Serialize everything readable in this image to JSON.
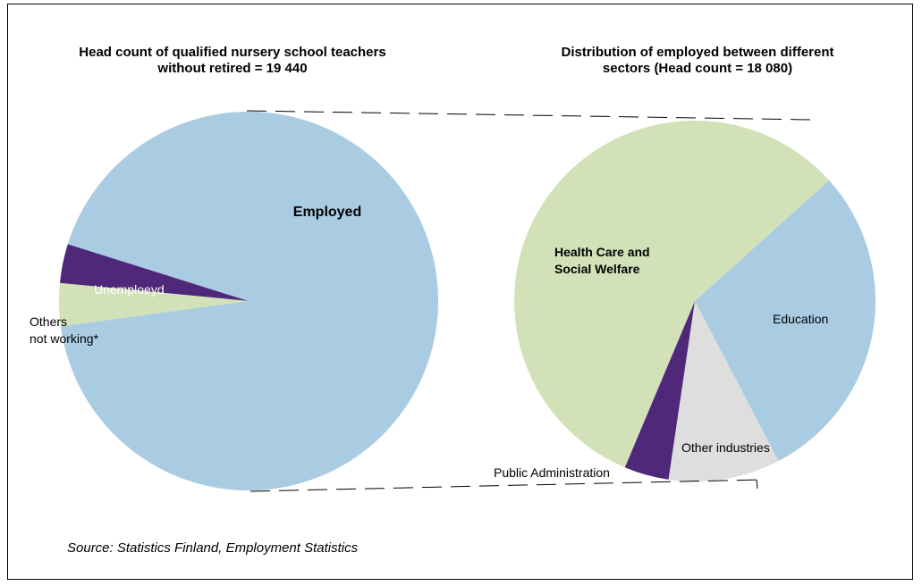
{
  "colors": {
    "employed": "#a9cce3",
    "unemployed": "#4f287a",
    "others_not_working": "#d3e1b8",
    "health_care": "#d3e1b8",
    "education": "#a9cce3",
    "other_industries": "#dedede",
    "public_admin": "#4f287a"
  },
  "chart_data": [
    {
      "type": "pie",
      "title_line1": "Head count of qualified nursery school teachers",
      "title_line2": "without retired =  19 440",
      "slices": [
        {
          "label": "Employed",
          "value": 18080,
          "color_key": "employed"
        },
        {
          "label": "Unemploeyd",
          "value": 650,
          "color_key": "unemployed"
        },
        {
          "label_line1": "Others",
          "label_line2": "not working*",
          "value": 710,
          "color_key": "others_not_working"
        }
      ]
    },
    {
      "type": "pie",
      "title_line1": "Distribution of employed between different",
      "title_line2": "sectors (Head count = 18 080)",
      "slices": [
        {
          "label_line1": "Health Care and",
          "label_line2": "Social Welfare",
          "value": 57,
          "color_key": "health_care"
        },
        {
          "label": "Education",
          "value": 29,
          "color_key": "education"
        },
        {
          "label": "Other industries",
          "value": 10,
          "color_key": "other_industries"
        },
        {
          "label": "Public Administration",
          "value": 4,
          "color_key": "public_admin"
        }
      ]
    }
  ],
  "source": "Source: Statistics Finland, Employment Statistics"
}
